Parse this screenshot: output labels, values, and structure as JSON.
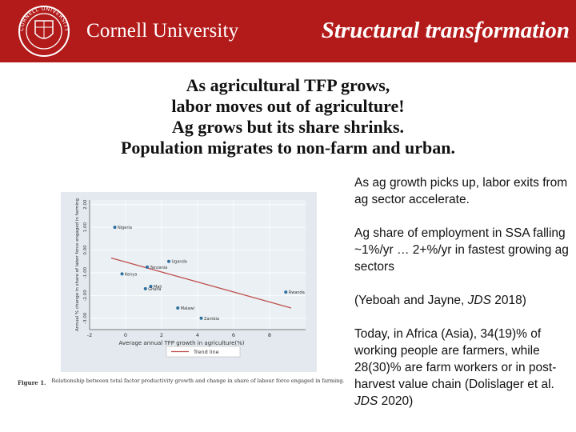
{
  "header": {
    "logo_text": "CORNELL UNIVERSITY",
    "university_name": "Cornell University",
    "slide_title": "Structural transformation"
  },
  "heading_lines": [
    "As agricultural TFP grows,",
    "labor moves out of agriculture!",
    "Ag grows but its share shrinks.",
    "Population migrates to non-farm and urban."
  ],
  "notes": {
    "p1": "As ag growth picks up, labor exits from ag sector accelerate.",
    "p2": "Ag share of employment in SSA falling ~1%/yr … 2+%/yr in fastest growing ag sectors",
    "p3_pre": "(Yeboah and Jayne, ",
    "p3_journal": "JDS",
    "p3_post": " 2018)",
    "p4_pre": "Today, in Africa (Asia), 34(19)% of working people are farmers, while 28(30)% are farm workers or in post-harvest value chain (Dolislager et al. ",
    "p4_journal": "JDS",
    "p4_post": " 2020)"
  },
  "chart_data": {
    "type": "scatter",
    "xlabel": "Average annual TFP growth in agriculture(%)",
    "ylabel": "Annual % change in share of labor force engaged in farming",
    "xlim": [
      -2,
      10
    ],
    "ylim": [
      -3.5,
      2.2
    ],
    "x_ticks": [
      -2,
      0,
      2,
      4,
      6,
      8
    ],
    "y_ticks": [
      2.0,
      1.0,
      0.0,
      -1.0,
      -2.0,
      -3.0
    ],
    "y_tick_labels": [
      "2.00",
      "1.00",
      "0.00",
      "-1.00",
      "-2.00",
      "-3.00"
    ],
    "points": [
      {
        "label": "Nigeria",
        "x": -0.6,
        "y": 1.0
      },
      {
        "label": "Uganda",
        "x": 2.4,
        "y": -0.5
      },
      {
        "label": "Tanzania",
        "x": 1.2,
        "y": -0.75
      },
      {
        "label": "Kenya",
        "x": -0.2,
        "y": -1.05
      },
      {
        "label": "Mali",
        "x": 1.4,
        "y": -1.6
      },
      {
        "label": "Ghana",
        "x": 1.1,
        "y": -1.7
      },
      {
        "label": "Rwanda",
        "x": 8.9,
        "y": -1.85
      },
      {
        "label": "Malawi",
        "x": 2.9,
        "y": -2.55
      },
      {
        "label": "Zambia",
        "x": 4.2,
        "y": -3.0
      }
    ],
    "trend_line": {
      "x": [
        -0.8,
        9.2
      ],
      "y": [
        -0.35,
        -2.55
      ]
    },
    "legend": {
      "label": "Trend line",
      "placement": "bottom-center"
    },
    "caption_label": "Figure 1.",
    "caption_text": "Relationship between total factor productivity growth and change in share of labour force engaged in farming.",
    "colors": {
      "points": "#2f6f9f",
      "trend": "#c0504d",
      "background": "#eaf0f4"
    }
  }
}
